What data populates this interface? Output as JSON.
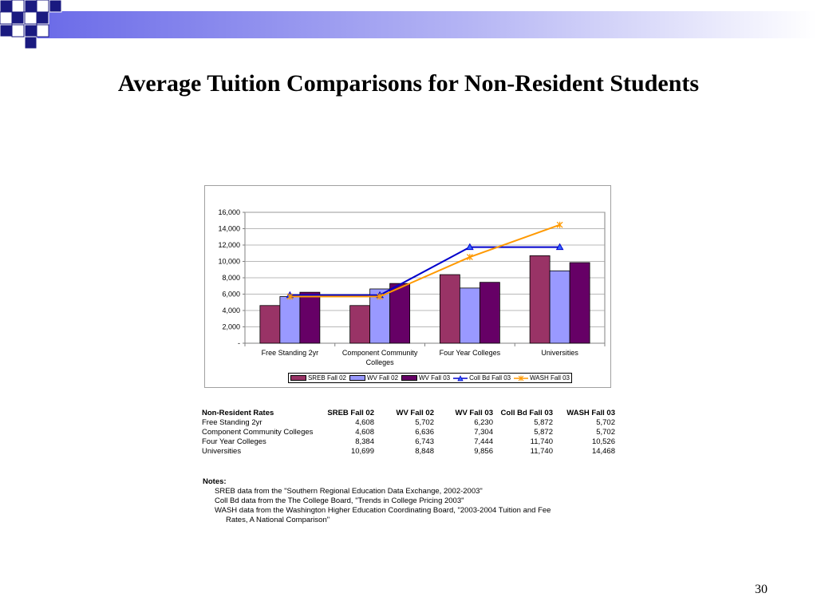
{
  "slide": {
    "title": "Average Tuition Comparisons for Non-Resident Students",
    "page_number": "30"
  },
  "colors": {
    "sreb_fall_02": "#993366",
    "wv_fall_02": "#9999ff",
    "wv_fall_03": "#660066",
    "coll_bd_fall_03": "#0000cc",
    "wash_fall_03": "#ff9900",
    "header_bar": "#8080ff",
    "header_squares": "#1a1a80"
  },
  "chart_data": {
    "type": "bar",
    "categories": [
      "Free Standing 2yr",
      "Component Community Colleges",
      "Four Year Colleges",
      "Universities"
    ],
    "category_lines": [
      [
        "Free Standing 2yr"
      ],
      [
        "Component Community",
        "Colleges"
      ],
      [
        "Four Year Colleges"
      ],
      [
        "Universities"
      ]
    ],
    "series": [
      {
        "name": "SREB Fall 02",
        "kind": "bar",
        "values": [
          4608,
          4608,
          8384,
          10699
        ]
      },
      {
        "name": "WV Fall 02",
        "kind": "bar",
        "values": [
          5702,
          6636,
          6743,
          8848
        ]
      },
      {
        "name": "WV Fall 03",
        "kind": "bar",
        "values": [
          6230,
          7304,
          7444,
          9856
        ]
      },
      {
        "name": "Coll Bd Fall 03",
        "kind": "line",
        "marker": "triangle",
        "values": [
          5872,
          5872,
          11740,
          11740
        ]
      },
      {
        "name": "WASH Fall 03",
        "kind": "line",
        "marker": "star",
        "values": [
          5702,
          5702,
          10526,
          14468
        ]
      }
    ],
    "y_ticks": [
      "-",
      "2,000",
      "4,000",
      "6,000",
      "8,000",
      "10,000",
      "12,000",
      "14,000",
      "16,000"
    ],
    "ylim": [
      0,
      16000
    ],
    "grid": true,
    "legend_position": "bottom"
  },
  "table": {
    "headers": [
      "Non-Resident Rates",
      "SREB Fall 02",
      "WV Fall 02",
      "WV Fall 03",
      "Coll Bd Fall 03",
      "WASH Fall 03"
    ],
    "rows": [
      [
        "Free Standing 2yr",
        "4,608",
        "5,702",
        "6,230",
        "5,872",
        "5,702"
      ],
      [
        "Component Community Colleges",
        "4,608",
        "6,636",
        "7,304",
        "5,872",
        "5,702"
      ],
      [
        "Four Year Colleges",
        "8,384",
        "6,743",
        "7,444",
        "11,740",
        "10,526"
      ],
      [
        "Universities",
        "10,699",
        "8,848",
        "9,856",
        "11,740",
        "14,468"
      ]
    ]
  },
  "notes": {
    "heading": "Notes:",
    "lines": [
      "SREB data from the \"Southern Regional Education Data Exchange, 2002-2003\"",
      "Coll Bd data from the The College Board, \"Trends in College Pricing 2003\"",
      "WASH data from the Washington Higher Education Coordinating Board, \"2003-2004 Tuition and Fee"
    ],
    "continuation": "Rates, A National Comparison\""
  }
}
